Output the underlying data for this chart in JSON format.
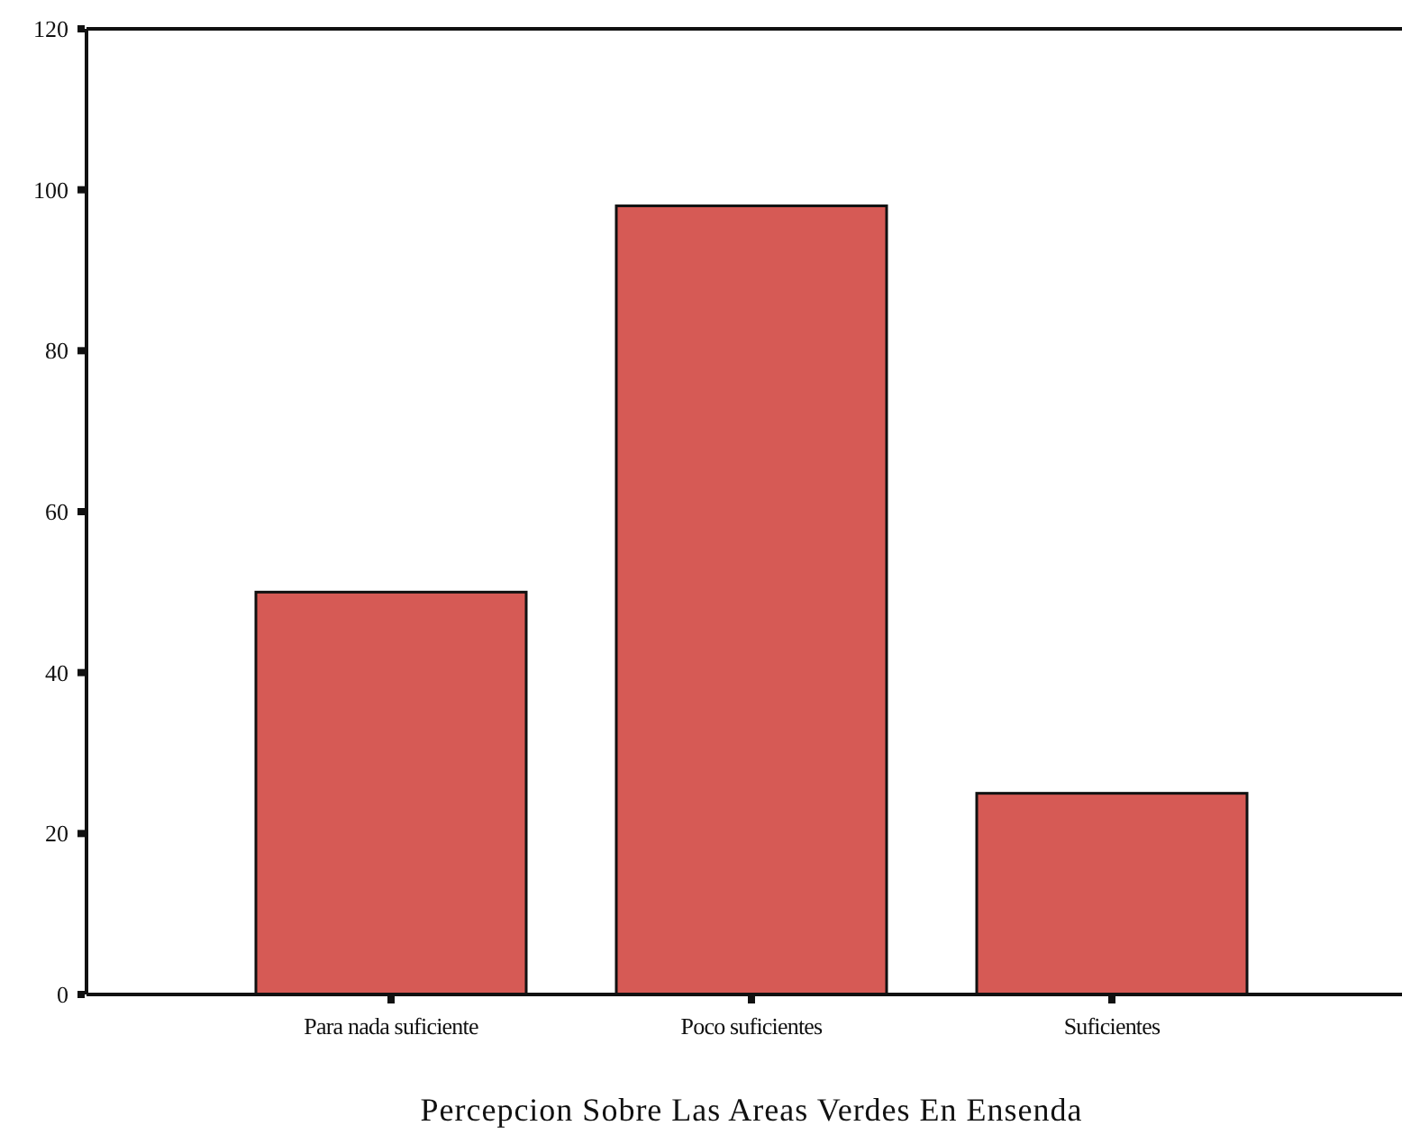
{
  "chart_data": {
    "type": "bar",
    "xlabel": "Percepcion Sobre Las Areas Verdes En Ensenda",
    "categories": [
      "Para nada suficiente",
      "Poco suficientes",
      "Suficientes"
    ],
    "values": [
      50,
      98,
      25
    ],
    "color": "#d65a55",
    "ylim": [
      0,
      120
    ],
    "yticks": [
      0,
      20,
      40,
      60,
      80,
      100,
      120
    ],
    "grid": false
  }
}
